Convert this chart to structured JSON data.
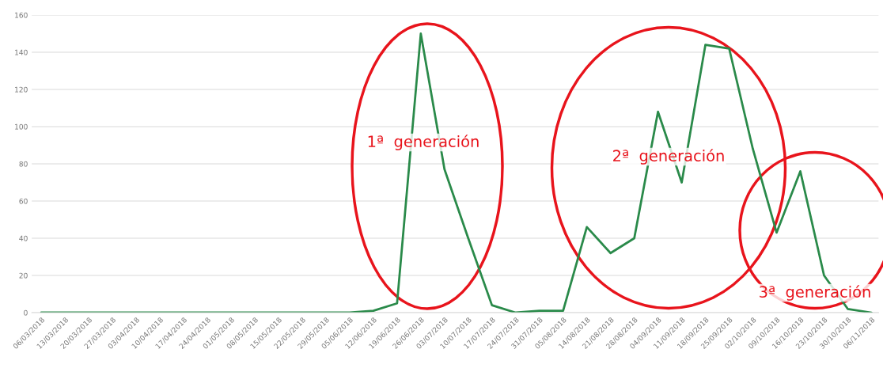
{
  "chart_data": {
    "type": "line",
    "categories": [
      "06/03/2018",
      "13/03/2018",
      "20/03/2018",
      "27/03/2018",
      "03/04/2018",
      "10/04/2018",
      "17/04/2018",
      "24/04/2018",
      "01/05/2018",
      "08/05/2018",
      "15/05/2018",
      "22/05/2018",
      "29/05/2018",
      "05/06/2018",
      "12/06/2018",
      "19/06/2018",
      "26/06/2018",
      "03/07/2018",
      "10/07/2018",
      "17/07/2018",
      "24/07/2018",
      "31/07/2018",
      "05/08/2018",
      "14/08/2018",
      "21/08/2018",
      "28/08/2018",
      "04/09/2018",
      "11/09/2018",
      "18/09/2018",
      "25/09/2018",
      "02/10/2018",
      "09/10/2018",
      "16/10/2018",
      "23/10/2018",
      "30/10/2018",
      "06/11/2018"
    ],
    "series": [
      {
        "color": "#2a8a4a",
        "values": [
          0,
          0,
          0,
          0,
          0,
          0,
          0,
          0,
          0,
          0,
          0,
          0,
          0,
          0,
          1,
          5,
          150,
          77,
          40,
          4,
          0,
          1,
          1,
          46,
          32,
          40,
          108,
          70,
          144,
          142,
          88,
          43,
          76,
          20,
          2,
          0
        ]
      }
    ],
    "ylim": [
      0,
      160
    ],
    "yticks": [
      0,
      20,
      40,
      60,
      80,
      100,
      120,
      140,
      160
    ],
    "grid": "y",
    "marker": "none",
    "line_style": "solid",
    "annotations": [
      "1ª  generación",
      "2ª  generación",
      "3ª  generación"
    ]
  }
}
